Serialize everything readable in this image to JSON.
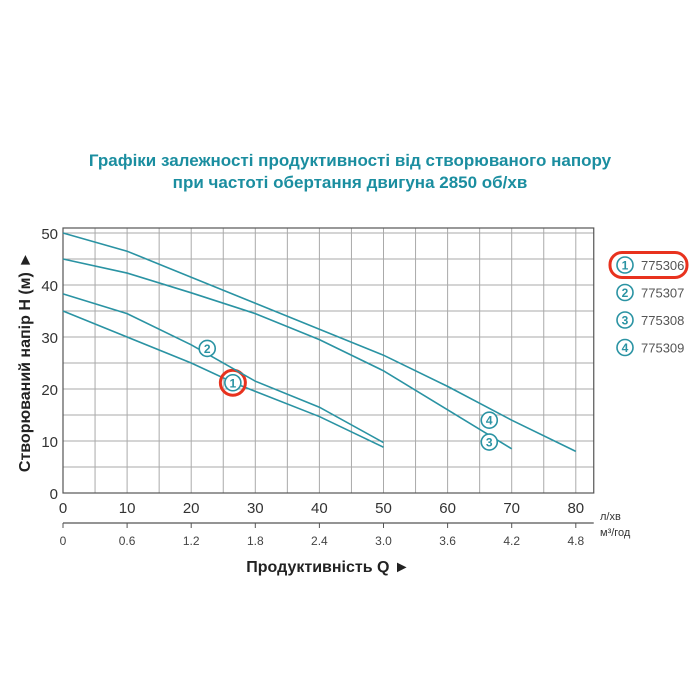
{
  "chart_data": {
    "type": "line",
    "title": "Графіки залежності продуктивності від створюваного напору",
    "subtitle": "при частоті обертання двигуна 2850 об/хв",
    "xlabel": "Продуктивність  Q ►",
    "ylabel": "Створюваний напір H (м) ►",
    "x_unit": "л/хв",
    "x2_unit": "м³/год",
    "xlim": [
      0,
      82.8
    ],
    "ylim": [
      0,
      50
    ],
    "x_ticks": [
      0,
      10,
      20,
      30,
      40,
      50,
      60,
      70,
      80
    ],
    "x2_ticks": [
      "0",
      "0.6",
      "1.2",
      "1.8",
      "2.4",
      "3.0",
      "3.6",
      "4.2",
      "4.8"
    ],
    "y_ticks": [
      0,
      10,
      20,
      30,
      40,
      50
    ],
    "grid": true,
    "legend_position": "right",
    "series": [
      {
        "name": "775306",
        "marker": "1",
        "highlighted": true,
        "label_at": [
          26.5,
          21.2
        ],
        "x": [
          0,
          10,
          20,
          27,
          40,
          50
        ],
        "y": [
          35,
          30,
          25,
          21,
          14.7,
          8.8
        ]
      },
      {
        "name": "775307",
        "marker": "2",
        "highlighted": false,
        "label_at": [
          22.5,
          27.8
        ],
        "x": [
          0,
          10,
          20,
          30,
          40,
          50
        ],
        "y": [
          38.3,
          34.5,
          28.5,
          21.5,
          16.5,
          9.7
        ]
      },
      {
        "name": "775308",
        "marker": "3",
        "highlighted": false,
        "label_at": [
          66.5,
          9.8
        ],
        "x": [
          0,
          10,
          20,
          30,
          40,
          50,
          60,
          70
        ],
        "y": [
          45,
          42.3,
          38.5,
          34.5,
          29.5,
          23.5,
          16,
          8.5
        ]
      },
      {
        "name": "775309",
        "marker": "4",
        "highlighted": false,
        "label_at": [
          66.5,
          14
        ],
        "x": [
          0,
          10,
          20,
          30,
          40,
          50,
          60,
          70,
          80
        ],
        "y": [
          50,
          46.5,
          41.5,
          36.5,
          31.5,
          26.5,
          20.5,
          14,
          8
        ]
      }
    ],
    "colors": {
      "line": "#2a93a3",
      "title": "#1b8ea0",
      "highlight": "#e8321e"
    }
  }
}
